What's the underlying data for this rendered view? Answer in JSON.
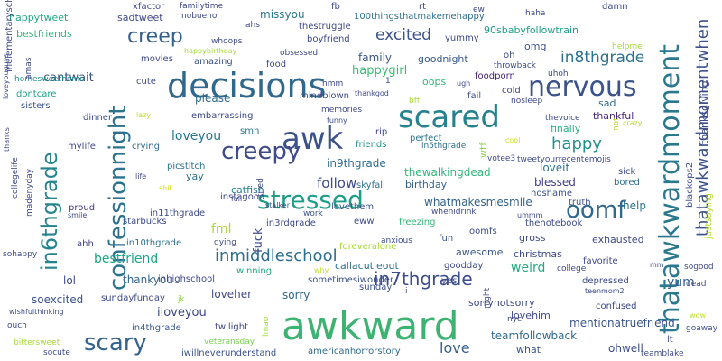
{
  "words": [
    {
      "text": "awkward",
      "color": "#3cb371"
    },
    {
      "text": "decisions",
      "color": "#31688e"
    },
    {
      "text": "scared",
      "color": "#26828e"
    },
    {
      "text": "awk",
      "color": "#3b528b"
    },
    {
      "text": "thatawkwardmoment",
      "color": "#2a788e"
    },
    {
      "text": "confessionnight",
      "color": "#2c728e"
    },
    {
      "text": "nervous",
      "color": "#3b528b"
    },
    {
      "text": "stressed",
      "color": "#1f9e89"
    },
    {
      "text": "scary",
      "color": "#33638d"
    },
    {
      "text": "creepy",
      "color": "#3e4a89"
    },
    {
      "text": "in6thgrade",
      "color": "#25858e"
    },
    {
      "text": "oomf",
      "color": "#31688e"
    },
    {
      "text": "creep",
      "color": "#355f8d"
    },
    {
      "text": "thatawkwardmomentwhen",
      "color": "#3b528b"
    },
    {
      "text": "in7thgrade",
      "color": "#3d4d8a"
    },
    {
      "text": "inmiddleschool",
      "color": "#2e6e8e"
    },
    {
      "text": "excited",
      "color": "#3b528b"
    },
    {
      "text": "in8thgrade",
      "color": "#2c728e"
    },
    {
      "text": "happy",
      "color": "#21918c"
    },
    {
      "text": "love",
      "color": "#355f8d"
    },
    {
      "text": "follow",
      "color": "#3e4989"
    },
    {
      "text": "bestfriend",
      "color": "#20a486"
    },
    {
      "text": "fml",
      "color": "#a5db36"
    },
    {
      "text": "loveyou",
      "color": "#2a788e"
    },
    {
      "text": "sorry",
      "color": "#31688e"
    },
    {
      "text": "fuck",
      "color": "#3e4a89"
    },
    {
      "text": "in9thgrade",
      "color": "#2e6e8e"
    },
    {
      "text": "cantwait",
      "color": "#39558c"
    },
    {
      "text": "missyou",
      "color": "#2a788e"
    },
    {
      "text": "happytweet",
      "color": "#22a884"
    },
    {
      "text": "happygirl",
      "color": "#3cbb75"
    },
    {
      "text": "family",
      "color": "#39568c"
    },
    {
      "text": "sadtweet",
      "color": "#3f4889"
    },
    {
      "text": "please",
      "color": "#2f6c8e"
    },
    {
      "text": "yay",
      "color": "#2d718e"
    },
    {
      "text": "blessed",
      "color": "#433e85"
    },
    {
      "text": "loveit",
      "color": "#2c728e"
    },
    {
      "text": "help",
      "color": "#2b758e"
    },
    {
      "text": "catfish",
      "color": "#277f8e"
    },
    {
      "text": "goodnight",
      "color": "#375b8d"
    },
    {
      "text": "omg",
      "color": "#39558c"
    },
    {
      "text": "oops",
      "color": "#35b779"
    },
    {
      "text": "thankyou",
      "color": "#33638d"
    },
    {
      "text": "lol",
      "color": "#3e4a89"
    },
    {
      "text": "soexcited",
      "color": "#3b528b"
    },
    {
      "text": "loveher",
      "color": "#3f4889"
    },
    {
      "text": "yum",
      "color": "#375b8d"
    },
    {
      "text": "weird",
      "color": "#25ab82"
    },
    {
      "text": "teamfollowback",
      "color": "#31688e"
    },
    {
      "text": "ohwell",
      "color": "#3d4d8a"
    },
    {
      "text": "what",
      "color": "#39568c"
    },
    {
      "text": "lovehim",
      "color": "#3e4a89"
    },
    {
      "text": "sorrynotsorry",
      "color": "#3f4889"
    },
    {
      "text": "mentionatruefriend",
      "color": "#39558c"
    },
    {
      "text": "callacutieout",
      "color": "#2c728e"
    },
    {
      "text": "iloveyou",
      "color": "#3e4989"
    },
    {
      "text": "christmas",
      "color": "#3e4c8a"
    },
    {
      "text": "awesome",
      "color": "#38588c"
    },
    {
      "text": "whatmakesmesmile",
      "color": "#33638d"
    },
    {
      "text": "thewalkingdead",
      "color": "#35b779"
    },
    {
      "text": "birthday",
      "color": "#33638d"
    },
    {
      "text": "finally",
      "color": "#29af7f"
    },
    {
      "text": "sad",
      "color": "#2f6c8e"
    },
    {
      "text": "thankful",
      "color": "#482878"
    },
    {
      "text": "exhausted",
      "color": "#3f4889"
    },
    {
      "text": "gross",
      "color": "#3e4989"
    },
    {
      "text": "amazing",
      "color": "#3b528b"
    },
    {
      "text": "yummy",
      "color": "#3e4a89"
    },
    {
      "text": "fail",
      "color": "#3b528b"
    },
    {
      "text": "cold",
      "color": "#414487"
    },
    {
      "text": "100thingsthatmakemehappy",
      "color": "#2e6e8e"
    },
    {
      "text": "90sbabyfollowtrain",
      "color": "#1fa088"
    },
    {
      "text": "foodporn",
      "color": "#481f70"
    },
    {
      "text": "smh",
      "color": "#2b758e"
    },
    {
      "text": "bestfriends",
      "color": "#35b779"
    },
    {
      "text": "homesweethome",
      "color": "#21918c"
    },
    {
      "text": "dontcare",
      "color": "#1fa188"
    },
    {
      "text": "sisters",
      "color": "#3b528b"
    },
    {
      "text": "dinner",
      "color": "#3d4e8a"
    },
    {
      "text": "mylife",
      "color": "#3f4889"
    },
    {
      "text": "crying",
      "color": "#2f6c8e"
    },
    {
      "text": "picstitch",
      "color": "#2d718e"
    },
    {
      "text": "instagood",
      "color": "#3e4a89"
    },
    {
      "text": "in11thgrade",
      "color": "#3e4a89"
    },
    {
      "text": "in10thgrade",
      "color": "#2c728e"
    },
    {
      "text": "starbucks",
      "color": "#3e4a89"
    },
    {
      "text": "proud",
      "color": "#453882"
    },
    {
      "text": "ahh",
      "color": "#414487"
    },
    {
      "text": "inhighschool",
      "color": "#3e4989"
    },
    {
      "text": "winning",
      "color": "#22a785"
    },
    {
      "text": "twilight",
      "color": "#3e4a89"
    },
    {
      "text": "in4thgrade",
      "color": "#375b8d"
    },
    {
      "text": "iwillneverunderstand",
      "color": "#3b528b"
    },
    {
      "text": "americanhorrorstory",
      "color": "#2f6c8e"
    },
    {
      "text": "veteransday",
      "color": "#7ad151"
    },
    {
      "text": "lmao",
      "color": "#a2da37"
    },
    {
      "text": "sometimesiwonder",
      "color": "#3b528b"
    },
    {
      "text": "foreveralone",
      "color": "#a8db34"
    },
    {
      "text": "goodday",
      "color": "#3e4c8a"
    },
    {
      "text": "sunday",
      "color": "#3b528b"
    },
    {
      "text": "sundayfunday",
      "color": "#3e4a89"
    },
    {
      "text": "jk",
      "color": "#8fd744"
    },
    {
      "text": "dying",
      "color": "#3e4a89"
    },
    {
      "text": "freezing",
      "color": "#34b679"
    },
    {
      "text": "anxious",
      "color": "#3e4a89"
    },
    {
      "text": "fun",
      "color": "#38588c"
    },
    {
      "text": "oomfs",
      "color": "#3e4a89"
    },
    {
      "text": "in3rdgrade",
      "color": "#3e4a89"
    },
    {
      "text": "lovethem",
      "color": "#3b528b"
    },
    {
      "text": "eww",
      "color": "#3e4a89"
    },
    {
      "text": "work",
      "color": "#3b528b"
    },
    {
      "text": "stalker",
      "color": "#3e4a89"
    },
    {
      "text": "skyfall",
      "color": "#2c728e"
    },
    {
      "text": "whenidrink",
      "color": "#3e4a89"
    },
    {
      "text": "noshame",
      "color": "#3b528b"
    },
    {
      "text": "truth",
      "color": "#3e4a89"
    },
    {
      "text": "thenotebook",
      "color": "#3e4a89"
    },
    {
      "text": "bored",
      "color": "#2e6e8e"
    },
    {
      "text": "sick",
      "color": "#3e4a89"
    },
    {
      "text": "tweetyourrecentemojis",
      "color": "#3e4a89"
    },
    {
      "text": "votee3",
      "color": "#3e4a89"
    },
    {
      "text": "friends",
      "color": "#21918c"
    },
    {
      "text": "perfect",
      "color": "#2a788e"
    },
    {
      "text": "in5thgrade",
      "color": "#2e6e8e"
    },
    {
      "text": "rip",
      "color": "#3e4a89"
    },
    {
      "text": "wtf",
      "color": "#8fd744"
    },
    {
      "text": "not",
      "color": "#bddf26"
    },
    {
      "text": "cool",
      "color": "#d2e21b"
    },
    {
      "text": "thevoice",
      "color": "#3e4a89"
    },
    {
      "text": "crazy",
      "color": "#b5de2b"
    },
    {
      "text": "nosleep",
      "color": "#3e4a89"
    },
    {
      "text": "memories",
      "color": "#3e4a89"
    },
    {
      "text": "funny",
      "color": "#3e4a89"
    },
    {
      "text": "lazy",
      "color": "#bddf26"
    },
    {
      "text": "embarrassing",
      "color": "#3e4a89"
    },
    {
      "text": "mindblown",
      "color": "#3e4a89"
    },
    {
      "text": "thankgod",
      "color": "#3e4a89"
    },
    {
      "text": "bff",
      "color": "#a8db34"
    },
    {
      "text": "cute",
      "color": "#3e4a89"
    },
    {
      "text": "food",
      "color": "#3e4a89"
    },
    {
      "text": "obsessed",
      "color": "#3e4a89"
    },
    {
      "text": "whoops",
      "color": "#3e4a89"
    },
    {
      "text": "movies",
      "color": "#3e4a89"
    },
    {
      "text": "happybirthday",
      "color": "#a5db36"
    },
    {
      "text": "ahs",
      "color": "#3e4a89"
    },
    {
      "text": "boyfriend",
      "color": "#3e4a89"
    },
    {
      "text": "thestruggle",
      "color": "#3e4a89"
    },
    {
      "text": "nobueno",
      "color": "#3e4a89"
    },
    {
      "text": "familytime",
      "color": "#3e4a89"
    },
    {
      "text": "xfactor",
      "color": "#3e4a89"
    },
    {
      "text": "fb",
      "color": "#3e4a89"
    },
    {
      "text": "rt",
      "color": "#3e4a89"
    },
    {
      "text": "ew",
      "color": "#3e4a89"
    },
    {
      "text": "haha",
      "color": "#3e4a89"
    },
    {
      "text": "damn",
      "color": "#3e4a89"
    },
    {
      "text": "oh",
      "color": "#3e4a89"
    },
    {
      "text": "throwback",
      "color": "#3e4a89"
    },
    {
      "text": "uhoh",
      "color": "#3e4a89"
    },
    {
      "text": "helpme",
      "color": "#a5db36"
    },
    {
      "text": "thanksgiving",
      "color": "#3e4a89"
    },
    {
      "text": "blackops2",
      "color": "#3e4a89"
    },
    {
      "text": "justsaying",
      "color": "#b5de2b"
    },
    {
      "text": "goaway",
      "color": "#3e4a89"
    },
    {
      "text": "sogood",
      "color": "#3e4a89"
    },
    {
      "text": "mm",
      "color": "#3e4a89"
    },
    {
      "text": "wow",
      "color": "#bddf26"
    },
    {
      "text": "dead",
      "color": "#3e4a89"
    },
    {
      "text": "teamblake",
      "color": "#3e4a89"
    },
    {
      "text": "lt",
      "color": "#3e4a89"
    },
    {
      "text": "nyc",
      "color": "#3e4a89"
    },
    {
      "text": "confused",
      "color": "#3e4a89"
    },
    {
      "text": "depressed",
      "color": "#3e4a89"
    },
    {
      "text": "teenmom2",
      "color": "#3e4a89"
    },
    {
      "text": "favorite",
      "color": "#3e4a89"
    },
    {
      "text": "college",
      "color": "#3e4a89"
    },
    {
      "text": "night",
      "color": "#3e4a89"
    },
    {
      "text": "yes",
      "color": "#3e4a89"
    },
    {
      "text": "ummm",
      "color": "#3e4a89"
    },
    {
      "text": "i",
      "color": "#3e4a89"
    },
    {
      "text": "why",
      "color": "#bddf26"
    },
    {
      "text": "socute",
      "color": "#3e4a89"
    },
    {
      "text": "bittersweet",
      "color": "#a8db34"
    },
    {
      "text": "ouch",
      "color": "#3e4a89"
    },
    {
      "text": "wishfulthinking",
      "color": "#3e4a89"
    },
    {
      "text": "sohappy",
      "color": "#3e4a89"
    },
    {
      "text": "smile",
      "color": "#3e4a89"
    },
    {
      "text": "madenyday",
      "color": "#3e4a89"
    },
    {
      "text": "collegelife",
      "color": "#3e4a89"
    },
    {
      "text": "thanks",
      "color": "#3e4a89"
    },
    {
      "text": "life",
      "color": "#3e4a89"
    },
    {
      "text": "shit",
      "color": "#d2e21b"
    },
    {
      "text": "fall",
      "color": "#3e4a89"
    },
    {
      "text": "tired",
      "color": "#3e4a89"
    },
    {
      "text": "hmm",
      "color": "#3e4a89"
    },
    {
      "text": "1",
      "color": "#3e4a89"
    },
    {
      "text": "ugh",
      "color": "#3e4a89"
    },
    {
      "text": "amas",
      "color": "#3e4a89"
    },
    {
      "text": "loveyouguys",
      "color": "#3e4a89"
    },
    {
      "text": "inelementaryschool",
      "color": "#3e4a89"
    }
  ]
}
